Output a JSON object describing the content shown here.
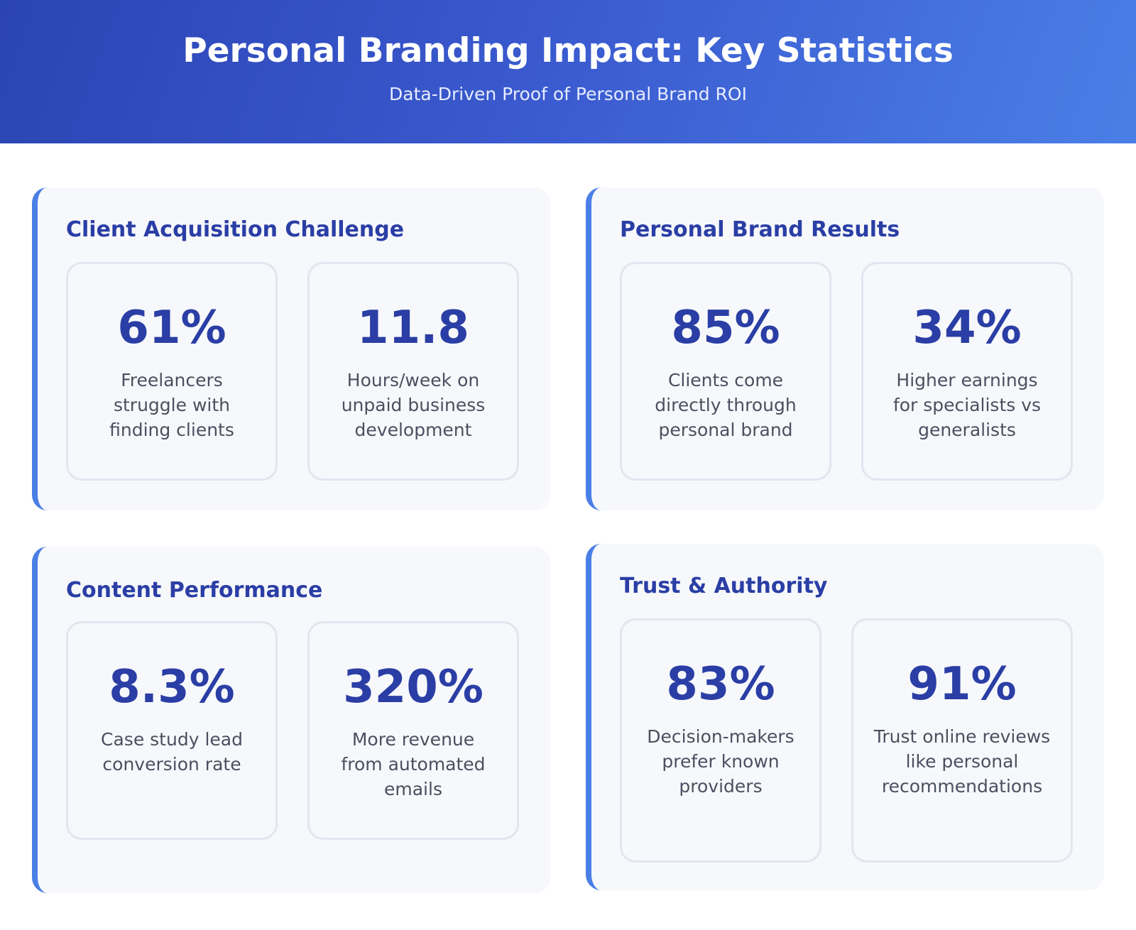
{
  "header": {
    "title": "Personal Branding Impact: Key Statistics",
    "subtitle": "Data-Driven Proof of Personal Brand ROI"
  },
  "colors": {
    "header_gradient_start": "#2b44b3",
    "header_gradient_end": "#4a7fe6",
    "accent": "#4a7fe6",
    "stat_value": "#2a3ea5",
    "label_text": "#4a5060",
    "card_background": "#f7f8fb"
  },
  "sections": [
    {
      "title": "Client Acquisition Challenge",
      "stats": [
        {
          "value": "61%",
          "label": "Freelancers struggle with finding clients"
        },
        {
          "value": "11.8",
          "label": "Hours/week on unpaid business development"
        }
      ]
    },
    {
      "title": "Personal Brand Results",
      "stats": [
        {
          "value": "85%",
          "label": "Clients come directly through personal brand"
        },
        {
          "value": "34%",
          "label": "Higher earnings for specialists vs generalists"
        }
      ]
    },
    {
      "title": "Content Performance",
      "stats": [
        {
          "value": "8.3%",
          "label": "Case study lead conversion rate"
        },
        {
          "value": "320%",
          "label": "More revenue from automated emails"
        }
      ]
    },
    {
      "title": "Trust & Authority",
      "stats": [
        {
          "value": "83%",
          "label": "Decision-makers prefer known providers"
        },
        {
          "value": "91%",
          "label": "Trust online reviews like personal recommendations"
        }
      ]
    }
  ]
}
